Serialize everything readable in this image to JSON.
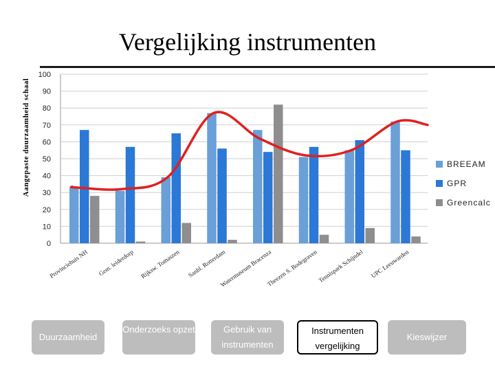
{
  "slide": {
    "title": "Vergelijking instrumenten"
  },
  "chart_data": {
    "type": "bar",
    "ylabel": "Aangepaste duurzaamheid schaal",
    "ylim": [
      0,
      100
    ],
    "yticks": [
      0,
      10,
      20,
      30,
      40,
      50,
      60,
      70,
      80,
      90,
      100
    ],
    "grid": true,
    "legend_position": "right",
    "categories": [
      "Provinciehuis NH",
      "Gem. leiderdorp",
      "Rijksw. Tomaszen",
      "Sanbl. Rotterdam",
      "Watermuseum Bracenza",
      "Theezen S. Bodegraven",
      "Tennispark Schijndel",
      "UPC Leeuwarden"
    ],
    "series": [
      {
        "name": "BREEAM",
        "color": "#6a9fd8",
        "values": [
          33,
          31,
          39,
          77,
          67,
          51,
          55,
          72
        ]
      },
      {
        "name": "GPR",
        "color": "#2b78d6",
        "values": [
          67,
          57,
          65,
          56,
          54,
          57,
          61,
          55
        ]
      },
      {
        "name": "Greencalc",
        "color": "#8e8e8e",
        "values": [
          28,
          1,
          12,
          2,
          82,
          5,
          9,
          4
        ]
      }
    ],
    "trend_line": {
      "color": "#e02020",
      "values": [
        33,
        32,
        39,
        77,
        62,
        52,
        55,
        72
      ]
    }
  },
  "nav": [
    {
      "label": "Duurzaamheid",
      "active": false
    },
    {
      "label": "Onderzoeks opzet",
      "active": false
    },
    {
      "label": "Gebruik van instrumenten",
      "active": false
    },
    {
      "label": "Instrumenten vergelijking",
      "active": true
    },
    {
      "label": "Kieswijzer",
      "active": false
    }
  ]
}
